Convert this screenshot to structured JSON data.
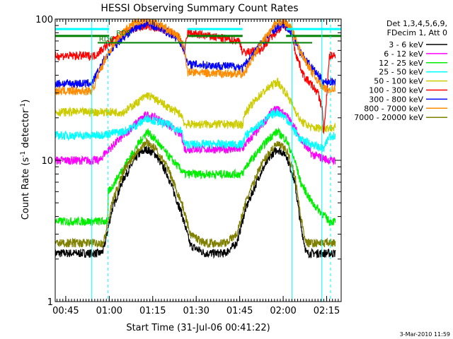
{
  "stamp": "3-Mar-2010 11:59",
  "chart_data": {
    "type": "line",
    "title": "HESSI Observing Summary Count Rates",
    "xlabel": "Start Time (31-Jul-06 00:41:22)",
    "ylabel_parts": [
      "Count Rate (s",
      "-1",
      " detector",
      "-1",
      ")"
    ],
    "yscale": "log",
    "ylim": [
      1,
      100
    ],
    "xlim": [
      "00:41:22",
      "02:20:00"
    ],
    "x_ticks": [
      "00:45",
      "01:00",
      "01:15",
      "01:30",
      "01:45",
      "02:00",
      "02:15"
    ],
    "y_ticks": [
      "1",
      "10",
      "100"
    ],
    "legend": {
      "placement": "right",
      "header": [
        "Det 1,3,4,5,6,9,",
        "FDecim 1, Att 0"
      ],
      "entries": [
        {
          "label": "3 - 6 keV",
          "color": "#000000"
        },
        {
          "label": "6 - 12 keV",
          "color": "#ff00ff"
        },
        {
          "label": "12 - 25 keV",
          "color": "#00ee00"
        },
        {
          "label": "25 - 50 keV",
          "color": "#00ffff"
        },
        {
          "label": "50 - 100 keV",
          "color": "#cccc00"
        },
        {
          "label": "100 - 300 keV",
          "color": "#ff0000"
        },
        {
          "label": "300 - 800 keV",
          "color": "#0000ff"
        },
        {
          "label": "800 - 7000 keV",
          "color": "#ff8c00"
        },
        {
          "label": "7000 - 20000 keV",
          "color": "#808000"
        }
      ]
    },
    "annotations": [
      {
        "text": "RD6",
        "x": "00:59:00",
        "y": 68
      },
      {
        "text": "RD5",
        "x": "01:05:00",
        "y": 75
      }
    ],
    "flags": [
      {
        "name": "cyan_flag",
        "color": "#00ffff",
        "segments": [
          [
            "00:41:22",
            "01:00:00"
          ],
          [
            "01:27:00",
            "01:46:00"
          ],
          [
            "02:01:00",
            "02:20:00"
          ]
        ],
        "y": 85
      },
      {
        "name": "green_flag",
        "color": "#008000",
        "segments": [
          [
            "00:41:22",
            "01:00:00"
          ],
          [
            "01:27:00",
            "01:46:00"
          ],
          [
            "02:01:00",
            "02:20:00"
          ]
        ],
        "y": 76
      },
      {
        "name": "green_thin",
        "color": "#008000",
        "segments": [
          [
            "00:56:00",
            "02:10:00"
          ]
        ],
        "y": 68
      }
    ],
    "vlines": [
      {
        "x": "00:54:00",
        "color": "#00ffff",
        "style": "solid"
      },
      {
        "x": "00:59:30",
        "color": "#00ffff",
        "style": "dashed"
      },
      {
        "x": "02:03:00",
        "color": "#00ffff",
        "style": "solid"
      },
      {
        "x": "02:13:20",
        "color": "#00ffff",
        "style": "solid"
      },
      {
        "x": "02:16:20",
        "color": "#00ffff",
        "style": "dashed"
      }
    ],
    "series": [
      {
        "name": "3 - 6 keV",
        "color": "#000000",
        "x": [
          "00:41:22",
          "00:57:00",
          "00:58:00",
          "01:01:00",
          "01:05:00",
          "01:10:00",
          "01:13:00",
          "01:16:00",
          "01:20:00",
          "01:25:00",
          "01:28:00",
          "01:33:00",
          "01:40:00",
          "01:44:00",
          "01:47:00",
          "01:52:00",
          "01:56:00",
          "01:58:00",
          "02:01:00",
          "02:04:00",
          "02:06:00",
          "02:08:00",
          "02:12:00",
          "02:15:00",
          "02:18:00"
        ],
        "y": [
          2.2,
          2.2,
          2.3,
          4.5,
          7.5,
          11,
          12,
          11,
          8,
          4.2,
          2.5,
          2.2,
          2.2,
          2.6,
          4.5,
          8,
          11,
          12,
          11,
          7,
          3.5,
          2.2,
          2.2,
          2.2,
          2.2
        ]
      },
      {
        "name": "6 - 12 keV",
        "color": "#ff00ff",
        "x": [
          "00:41:22",
          "00:57:00",
          "00:58:00",
          "01:05:00",
          "01:10:00",
          "01:13:00",
          "01:16:00",
          "01:20:00",
          "01:25:00",
          "01:26:00",
          "01:46:00",
          "01:47:00",
          "01:52:00",
          "01:56:00",
          "01:58:00",
          "02:01:00",
          "02:04:00",
          "02:06:00",
          "02:10:00",
          "02:16:00",
          "02:18:00"
        ],
        "y": [
          10,
          10,
          11,
          15,
          19,
          21,
          20,
          18,
          15,
          12,
          12,
          13,
          17,
          22,
          23,
          21,
          17,
          14,
          11,
          10,
          10
        ]
      },
      {
        "name": "12 - 25 keV",
        "color": "#00ee00",
        "x": [
          "00:41:22",
          "00:59:30",
          "00:59:40",
          "01:01:00",
          "01:05:00",
          "01:10:00",
          "01:13:00",
          "01:16:00",
          "01:20:00",
          "01:25:00",
          "01:26:00",
          "01:46:00",
          "01:47:00",
          "01:52:00",
          "01:56:00",
          "01:58:00",
          "02:01:00",
          "02:04:00",
          "02:06:00",
          "02:10:00",
          "02:16:00",
          "02:18:00"
        ],
        "y": [
          3.7,
          3.7,
          6,
          6.5,
          9,
          13,
          16,
          14,
          11,
          8.5,
          8,
          8,
          9,
          12,
          15,
          16,
          14,
          10,
          7,
          5,
          3.7,
          3.7
        ]
      },
      {
        "name": "25 - 50 keV",
        "color": "#00ffff",
        "x": [
          "00:41:22",
          "00:55:00",
          "01:05:00",
          "01:10:00",
          "01:13:00",
          "01:16:00",
          "01:20:00",
          "01:25:00",
          "01:26:00",
          "01:46:00",
          "01:47:00",
          "01:52:00",
          "01:56:00",
          "01:58:00",
          "02:01:00",
          "02:04:00",
          "02:06:00",
          "02:10:00",
          "02:14:00",
          "02:16:00",
          "02:18:00"
        ],
        "y": [
          15,
          15,
          16,
          18,
          20,
          19,
          18,
          16,
          13,
          13,
          15,
          18,
          21,
          22,
          20,
          16,
          14,
          13,
          12,
          15,
          15
        ]
      },
      {
        "name": "50 - 100 keV",
        "color": "#cccc00",
        "x": [
          "00:41:22",
          "00:55:00",
          "01:05:00",
          "01:10:00",
          "01:13:00",
          "01:16:00",
          "01:20:00",
          "01:25:00",
          "01:26:00",
          "01:46:00",
          "01:47:00",
          "01:52:00",
          "01:56:00",
          "01:58:00",
          "02:01:00",
          "02:04:00",
          "02:06:00",
          "02:10:00",
          "02:16:00",
          "02:18:00"
        ],
        "y": [
          22,
          22,
          22,
          26,
          29,
          27,
          24,
          21,
          18,
          18,
          22,
          29,
          34,
          36,
          30,
          23,
          19,
          17,
          17,
          17
        ]
      },
      {
        "name": "100 - 300 keV",
        "color": "#ff0000",
        "x": [
          "00:41:22",
          "00:55:00",
          "00:59:00",
          "01:03:00",
          "01:08:00",
          "01:13:00",
          "01:18:00",
          "01:24:00",
          "01:26:00",
          "01:27:00",
          "01:45:00",
          "01:46:00",
          "01:52:00",
          "01:57:00",
          "02:00:00",
          "02:03:00",
          "02:04:00",
          "02:07:00",
          "02:12:00",
          "02:13:30",
          "02:14:00",
          "02:16:00",
          "02:18:00"
        ],
        "y": [
          55,
          55,
          65,
          75,
          85,
          90,
          85,
          75,
          58,
          80,
          70,
          58,
          60,
          80,
          90,
          85,
          60,
          40,
          30,
          23,
          15,
          55,
          55
        ]
      },
      {
        "name": "300 - 800 keV",
        "color": "#0000ff",
        "x": [
          "00:41:22",
          "00:54:00",
          "00:59:00",
          "01:04:00",
          "01:09:00",
          "01:13:00",
          "01:18:00",
          "01:24:00",
          "01:26:00",
          "01:27:00",
          "01:45:00",
          "01:46:00",
          "01:52:00",
          "01:57:00",
          "02:00:00",
          "02:03:00",
          "02:06:00",
          "02:10:00",
          "02:14:00",
          "02:16:00",
          "02:18:00"
        ],
        "y": [
          35,
          35,
          55,
          72,
          87,
          93,
          86,
          72,
          60,
          48,
          46,
          45,
          66,
          85,
          92,
          80,
          58,
          45,
          36,
          36,
          36
        ]
      },
      {
        "name": "800 - 7000 keV",
        "color": "#ff8c00",
        "x": [
          "00:41:22",
          "00:54:00",
          "00:59:00",
          "01:04:00",
          "01:09:00",
          "01:13:00",
          "01:18:00",
          "01:24:00",
          "01:26:00",
          "01:27:00",
          "01:45:00",
          "01:46:00",
          "01:52:00",
          "01:57:00",
          "02:00:00",
          "02:03:00",
          "02:06:00",
          "02:10:00",
          "02:14:00",
          "02:16:00",
          "02:18:00"
        ],
        "y": [
          31,
          31,
          55,
          78,
          95,
          100,
          90,
          75,
          62,
          42,
          41,
          40,
          65,
          90,
          98,
          85,
          58,
          42,
          32,
          32,
          32
        ]
      },
      {
        "name": "7000 - 20000 keV",
        "color": "#808000",
        "x": [
          "00:41:22",
          "00:58:00",
          "00:59:00",
          "01:01:00",
          "01:05:00",
          "01:10:00",
          "01:13:00",
          "01:16:00",
          "01:20:00",
          "01:25:00",
          "01:28:00",
          "01:33:00",
          "01:40:00",
          "01:44:00",
          "01:47:00",
          "01:52:00",
          "01:56:00",
          "01:58:00",
          "02:01:00",
          "02:04:00",
          "02:06:00",
          "02:08:00",
          "02:12:00",
          "02:15:00",
          "02:18:00"
        ],
        "y": [
          2.6,
          2.6,
          3.2,
          5,
          8.5,
          12,
          13.5,
          12,
          9,
          5,
          3,
          2.6,
          2.6,
          3,
          5,
          9,
          12,
          13,
          12,
          8,
          4,
          2.6,
          2.6,
          2.6,
          2.6
        ]
      }
    ]
  }
}
